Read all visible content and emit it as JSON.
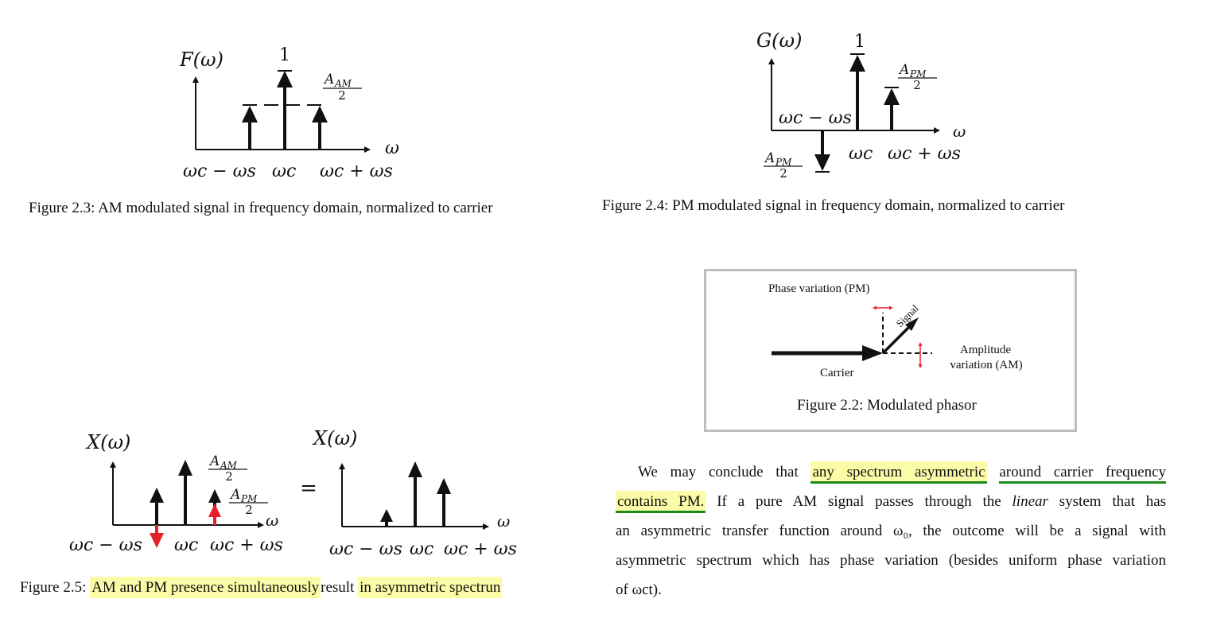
{
  "figures": {
    "fig23": {
      "caption": "Figure 2.3: AM modulated signal in frequency domain, normalized to carrier",
      "ylabel": "F(ω)",
      "xlabel": "ω",
      "peak_label": "1",
      "side_label_num": "A",
      "side_label_sub": "AM",
      "side_label_den": "2",
      "tick_labels": [
        "ωc − ωs",
        "ωc",
        "ωc + ωs"
      ]
    },
    "fig24": {
      "caption": "Figure 2.4: PM modulated signal in frequency domain, normalized to carrier",
      "ylabel": "G(ω)",
      "xlabel": "ω",
      "peak_label": "1",
      "upper_label_num": "A",
      "upper_label_sub": "PM",
      "upper_label_den": "2",
      "lower_label_num": "A",
      "lower_label_sub": "PM",
      "lower_label_den": "2",
      "tick_labels": [
        "ωc − ωs",
        "ωc",
        "ωc + ωs"
      ]
    },
    "fig22": {
      "caption": "Figure 2.2: Modulated phasor",
      "phase_label": "Phase variation (PM)",
      "signal_label": "Signal",
      "carrier_label": "Carrier",
      "amp_label_1": "Amplitude",
      "amp_label_2": "variation (AM)"
    },
    "fig25": {
      "caption_prefix": "Figure 2.5:",
      "caption_hl1": "AM and PM presence simultaneously",
      "caption_mid": "result",
      "caption_hl2": "in asymmetric spectrun",
      "ylabel_left": "X(ω)",
      "ylabel_right": "X(ω)",
      "xlabel": "ω",
      "am_num": "A",
      "am_sub": "AM",
      "am_den": "2",
      "pm_num": "A",
      "pm_sub": "PM",
      "pm_den": "2",
      "equals": "=",
      "tick_labels": [
        "ωc − ωs",
        "ωc",
        "ωc + ωs"
      ]
    }
  },
  "paragraph": {
    "l1_a": "We may conclude that",
    "l1_hl": "any spectrum asymmetric",
    "l1_b": "around carrier frequency",
    "l2_hl": "contains PM.",
    "l2_a": "If a pure AM signal passes through the",
    "l2_ital": "linear",
    "l2_b": "system that has",
    "l3": "an asymmetric transfer function around ω₀, the outcome will be a signal with",
    "l4": "asymmetric spectrum which has phase variation (besides uniform phase variation",
    "l5": "of ωct)."
  },
  "colors": {
    "highlight": "#fbfba8",
    "underline": "#1a8a1a",
    "red_arrow": "#e8202a",
    "box_border": "#bdbdbd"
  }
}
